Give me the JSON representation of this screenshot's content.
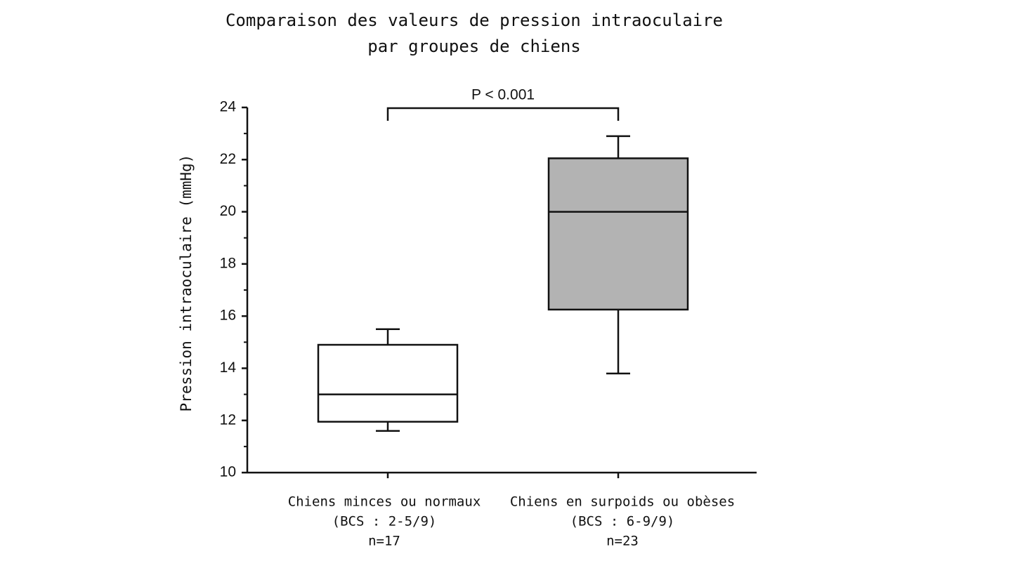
{
  "chart_data": {
    "type": "box",
    "title": [
      "Comparaison des valeurs de pression intraoculaire",
      "par groupes de chiens"
    ],
    "y_label": "Pression intraoculaire (mmHg)",
    "categories": [
      [
        "Chiens minces ou normaux",
        "(BCS : 2-5/9)",
        "n=17"
      ],
      [
        "Chiens en surpoids ou obèses",
        "(BCS : 6-9/9)",
        "n=23"
      ]
    ],
    "boxes": [
      {
        "whislo": 11.6,
        "q1": 11.95,
        "med": 13,
        "q3": 14.9,
        "whishi": 15.5,
        "color": "#ffffff"
      },
      {
        "whislo": 13.8,
        "q1": 16.25,
        "med": 20,
        "q3": 22.05,
        "whishi": 22.9,
        "color": "#b3b3b3"
      }
    ],
    "ylim": [
      10,
      24
    ],
    "yticks": [
      10,
      12,
      14,
      16,
      18,
      20,
      22,
      24
    ],
    "yminorticks": [
      11,
      13,
      15,
      17,
      19,
      21,
      23
    ],
    "annotation": "P < 0.001"
  }
}
